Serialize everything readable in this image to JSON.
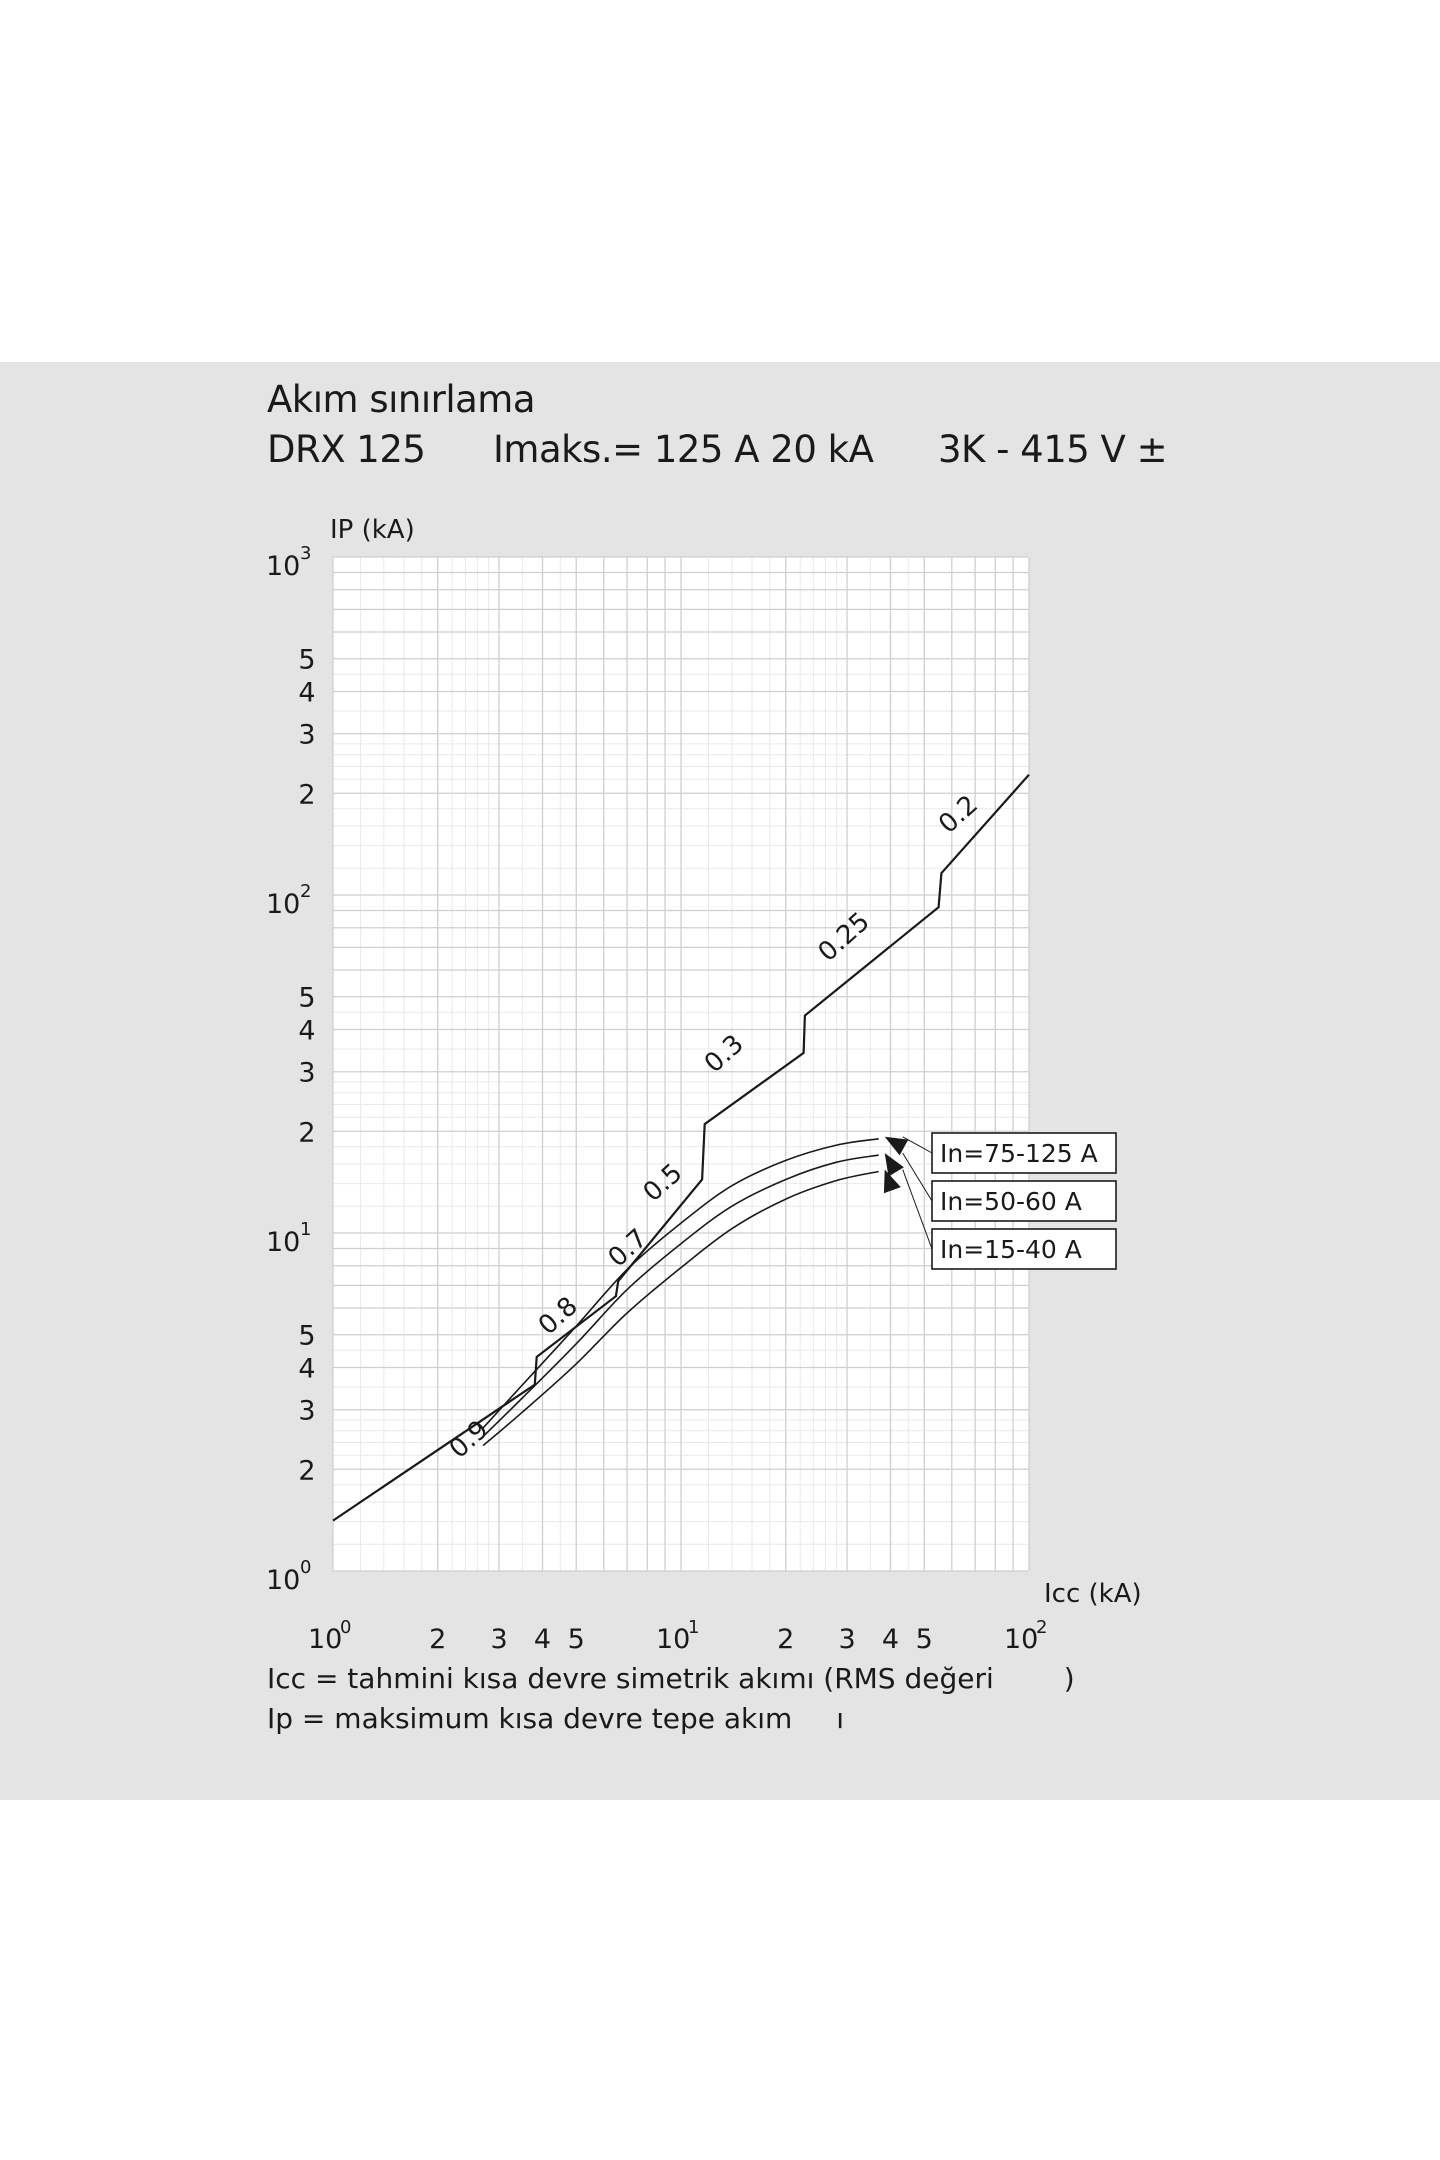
{
  "header": {
    "title": "Akım sınırlama",
    "model": "DRX 125",
    "rating": "Imaks.= 125 A 20 kA",
    "voltage": "3K - 415 V ±"
  },
  "chart_data": {
    "type": "line",
    "x_scale": "log",
    "y_scale": "log",
    "xlim": [
      1,
      100
    ],
    "ylim": [
      1,
      1000
    ],
    "ylabel": "IP (kA)",
    "xlabel": "Icc (kA)",
    "x_ticks": [
      {
        "v": 1,
        "base": "10",
        "exp": "0"
      },
      {
        "v": 2,
        "label": "2"
      },
      {
        "v": 3,
        "label": "3"
      },
      {
        "v": 4,
        "label": "4"
      },
      {
        "v": 5,
        "label": "5"
      },
      {
        "v": 10,
        "base": "10",
        "exp": "1"
      },
      {
        "v": 20,
        "label": "2"
      },
      {
        "v": 30,
        "label": "3"
      },
      {
        "v": 40,
        "label": "4"
      },
      {
        "v": 50,
        "label": "5"
      },
      {
        "v": 100,
        "base": "10",
        "exp": "2"
      }
    ],
    "y_ticks": [
      {
        "v": 1,
        "base": "10",
        "exp": "0"
      },
      {
        "v": 2,
        "label": "2"
      },
      {
        "v": 3,
        "label": "3"
      },
      {
        "v": 4,
        "label": "4"
      },
      {
        "v": 5,
        "label": "5"
      },
      {
        "v": 10,
        "base": "10",
        "exp": "1"
      },
      {
        "v": 20,
        "label": "2"
      },
      {
        "v": 30,
        "label": "3"
      },
      {
        "v": 40,
        "label": "4"
      },
      {
        "v": 50,
        "label": "5"
      },
      {
        "v": 100,
        "base": "10",
        "exp": "2"
      },
      {
        "v": 200,
        "label": "2"
      },
      {
        "v": 300,
        "label": "3"
      },
      {
        "v": 400,
        "label": "4"
      },
      {
        "v": 500,
        "label": "5"
      },
      {
        "v": 1000,
        "base": "10",
        "exp": "3"
      }
    ],
    "peak_line": {
      "points": [
        [
          1,
          1.41
        ],
        [
          3.8,
          3.56
        ],
        [
          3.85,
          4.3
        ],
        [
          6.5,
          6.5
        ],
        [
          6.6,
          7.2
        ],
        [
          11.5,
          14.4
        ],
        [
          11.7,
          21
        ],
        [
          22.5,
          34.1
        ],
        [
          22.7,
          44
        ],
        [
          55,
          92
        ],
        [
          56,
          116
        ],
        [
          100,
          227
        ]
      ],
      "labels": [
        {
          "text": "0.9",
          "x": 2.55,
          "y": 2.35
        },
        {
          "text": "0.8",
          "x": 4.6,
          "y": 5.45
        },
        {
          "text": "0.7",
          "x": 7.3,
          "y": 8.65
        },
        {
          "text": "0.5",
          "x": 9.2,
          "y": 13.5
        },
        {
          "text": "0.3",
          "x": 13.8,
          "y": 32.5
        },
        {
          "text": "0.25",
          "x": 30.5,
          "y": 72
        },
        {
          "text": "0.2",
          "x": 65,
          "y": 166
        }
      ]
    },
    "series": [
      {
        "name": "In=75-125 A",
        "x": [
          2.7,
          3.5,
          5,
          7,
          10,
          14,
          20,
          28,
          37
        ],
        "y": [
          2.65,
          3.55,
          5.3,
          7.8,
          10.7,
          13.8,
          16.4,
          18.2,
          19.0
        ]
      },
      {
        "name": "In=50-60 A",
        "x": [
          2.7,
          3.5,
          5,
          7,
          10,
          14,
          20,
          28,
          37
        ],
        "y": [
          2.5,
          3.25,
          4.7,
          6.8,
          9.3,
          12.0,
          14.4,
          16.2,
          17.0
        ]
      },
      {
        "name": "In=15-40 A",
        "x": [
          2.7,
          3.5,
          5,
          7,
          10,
          14,
          20,
          28,
          37
        ],
        "y": [
          2.35,
          2.95,
          4.1,
          5.8,
          7.9,
          10.3,
          12.6,
          14.3,
          15.2
        ]
      }
    ]
  },
  "notes": {
    "icc_prefix": "Icc = tahmini kısa devre simetrik akımı (RMS değeri",
    "icc_suffix": ")",
    "ip_prefix": "Ip = maksimum kısa devre tepe akım",
    "ip_suffix": "ı"
  }
}
